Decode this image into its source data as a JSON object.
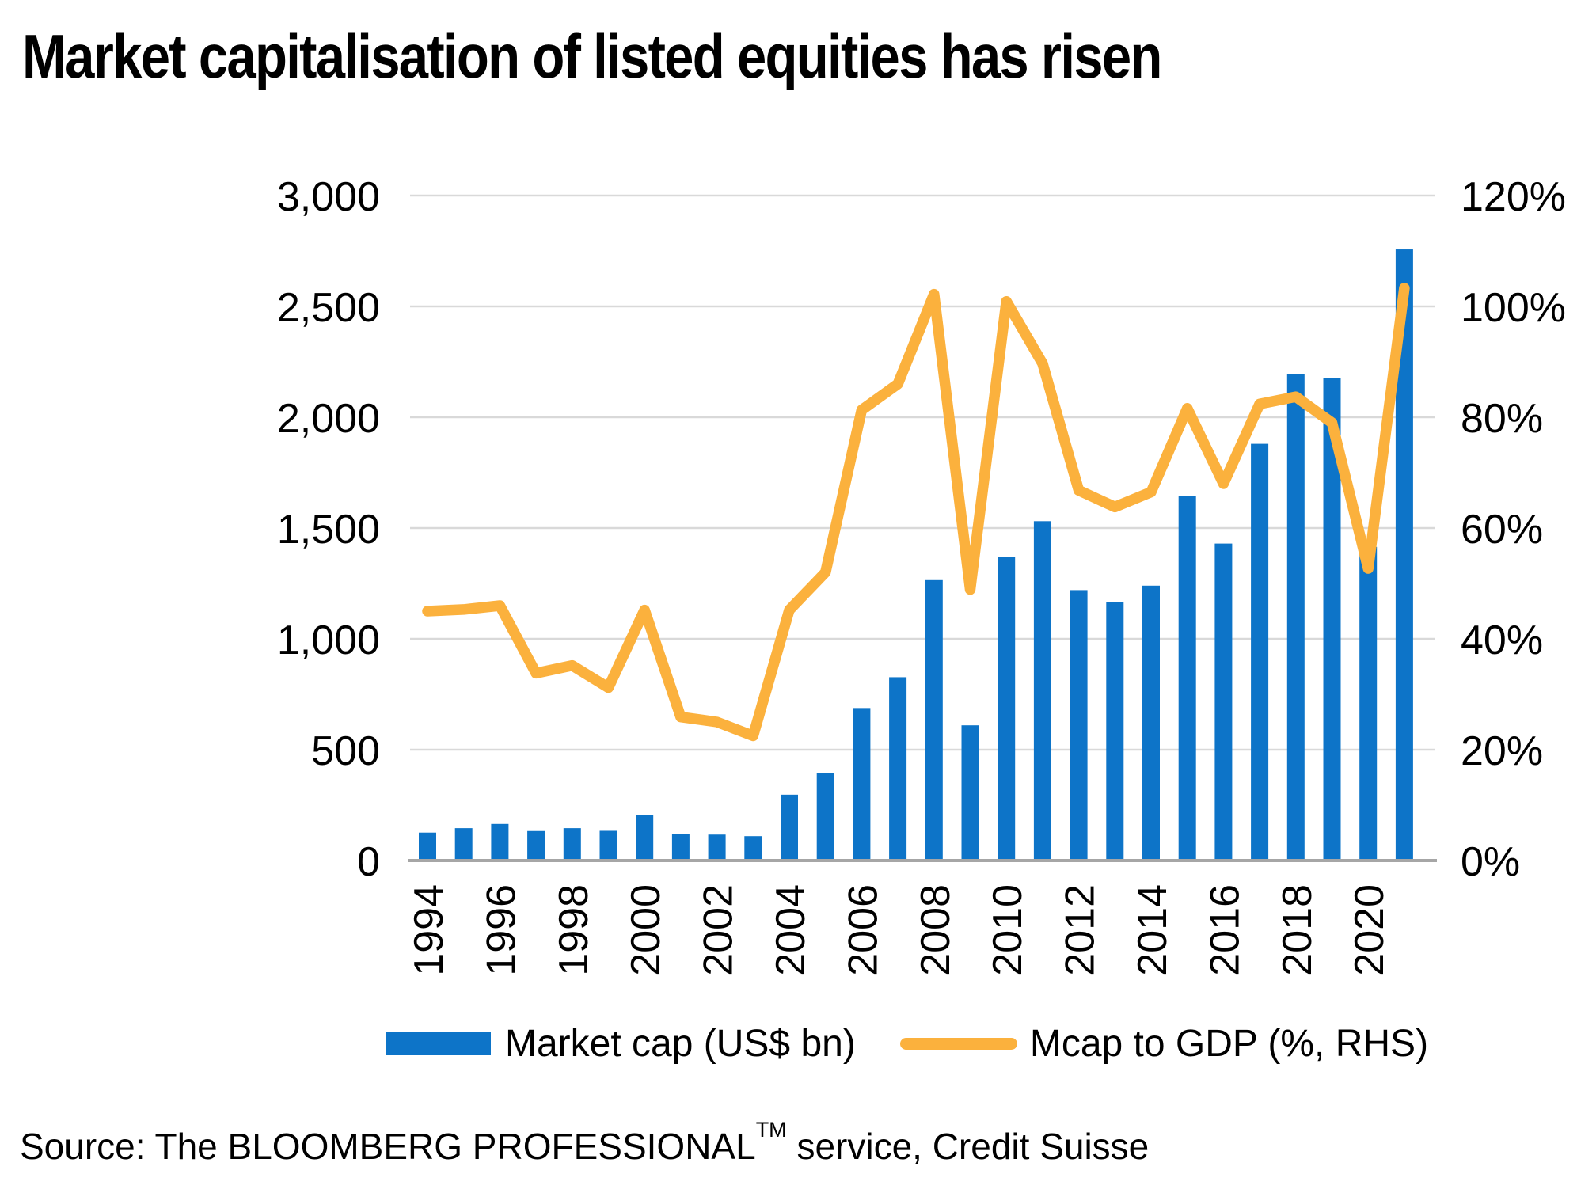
{
  "title": "Market capitalisation of listed equities has risen",
  "legend": {
    "market_cap_label": "Market cap (US$ bn)",
    "gdp_label": "Mcap to GDP (%, RHS)"
  },
  "source": {
    "prefix": "Source: The BLOOMBERG PROFESSIONAL",
    "superscript": "TM",
    "suffix": " service, Credit Suisse"
  },
  "colors": {
    "bar": "#0D74C8",
    "line": "#FBB13D",
    "gridline": "#D9D9D9",
    "axis_line": "#A6A6A6",
    "text": "#000000"
  },
  "chart_data": {
    "type": "bar+line",
    "title": "Market capitalisation of listed equities has risen",
    "x": [
      1994,
      1995,
      1996,
      1997,
      1998,
      1999,
      2000,
      2001,
      2002,
      2003,
      2004,
      2005,
      2006,
      2007,
      2008,
      2009,
      2010,
      2011,
      2012,
      2013,
      2014,
      2015,
      2016,
      2017,
      2018,
      2019,
      2020,
      2021
    ],
    "x_tick_labels": [
      "1994",
      "1996",
      "1998",
      "2000",
      "2002",
      "2004",
      "2006",
      "2008",
      "2010",
      "2012",
      "2014",
      "2016",
      "2018",
      "2020"
    ],
    "series": [
      {
        "name": "Market cap (US$ bn)",
        "type": "bar",
        "axis": "left",
        "values": [
          126,
          146,
          165,
          133,
          146,
          134,
          206,
          120,
          117,
          110,
          297,
          395,
          688,
          827,
          1265,
          610,
          1371,
          1531,
          1220,
          1165,
          1240,
          1646,
          1430,
          1880,
          2193,
          2175,
          1415,
          2757
        ]
      },
      {
        "name": "Mcap to GDP (%, RHS)",
        "type": "line",
        "axis": "right",
        "values": [
          45,
          45.3,
          46,
          33.8,
          35.2,
          31.2,
          45.2,
          25.9,
          25,
          22.5,
          45.2,
          52,
          81.3,
          86,
          102.2,
          48.9,
          100.9,
          89.7,
          66.8,
          63.8,
          66.5,
          81.6,
          68,
          82.4,
          83.7,
          79,
          52.7,
          103.3
        ]
      }
    ],
    "left_axis": {
      "ticks": [
        0,
        500,
        1000,
        1500,
        2000,
        2500,
        3000
      ],
      "tick_labels": [
        "0",
        "500",
        "1,000",
        "1,500",
        "2,000",
        "2,500",
        "3,000"
      ],
      "range": [
        0,
        3000
      ]
    },
    "right_axis": {
      "ticks": [
        0,
        20,
        40,
        60,
        80,
        100,
        120
      ],
      "tick_labels": [
        "0%",
        "20%",
        "40%",
        "60%",
        "80%",
        "100%",
        "120%"
      ],
      "range": [
        0,
        120
      ]
    },
    "gridlines": true,
    "legend_position": "bottom"
  }
}
